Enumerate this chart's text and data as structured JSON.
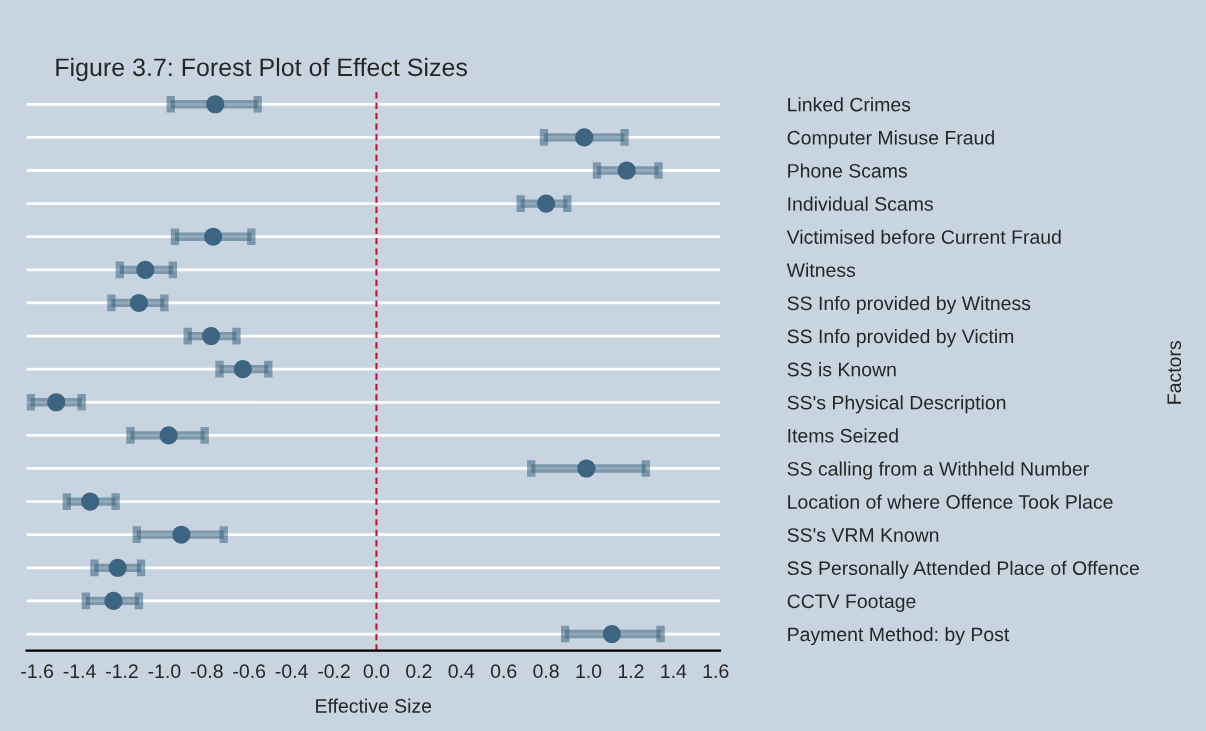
{
  "chart_data": {
    "type": "scatter",
    "orientation": "horizontal",
    "title": "Figure 3.7: Forest Plot of Effect Sizes",
    "xlabel": "Effective Size",
    "ylabel": "Factors",
    "categories": [
      "Linked Crimes",
      "Computer Misuse Fraud",
      "Phone Scams",
      "Individual Scams",
      "Victimised before Current Fraud",
      "Witness",
      "SS Info provided by Witness",
      "SS Info provided by Victim",
      "SS is Known",
      "SS's Physical Description",
      "Items Seized",
      "SS calling from a Withheld Number",
      "Location of where Offence Took Place",
      "SS's VRM Known",
      "SS Personally Attended Place of Offence",
      "CCTV Footage",
      "Payment Method: by Post"
    ],
    "series": [
      {
        "color": "#3d6480",
        "values": [
          -0.76,
          0.98,
          1.18,
          0.8,
          -0.77,
          -1.09,
          -1.12,
          -0.78,
          -0.63,
          -1.51,
          -0.98,
          0.99,
          -1.35,
          -0.92,
          -1.22,
          -1.24,
          1.11
        ],
        "errors": [
          [
            -0.97,
            -0.56
          ],
          [
            0.79,
            1.17
          ],
          [
            1.04,
            1.33
          ],
          [
            0.68,
            0.9
          ],
          [
            -0.95,
            -0.59
          ],
          [
            -1.21,
            -0.96
          ],
          [
            -1.25,
            -1.0
          ],
          [
            -0.89,
            -0.66
          ],
          [
            -0.74,
            -0.51
          ],
          [
            -1.63,
            -1.39
          ],
          [
            -1.16,
            -0.81
          ],
          [
            0.73,
            1.27
          ],
          [
            -1.46,
            -1.23
          ],
          [
            -1.13,
            -0.72
          ],
          [
            -1.33,
            -1.11
          ],
          [
            -1.37,
            -1.12
          ],
          [
            0.89,
            1.34
          ]
        ]
      }
    ],
    "xlim": [
      -1.65,
      1.62
    ],
    "xticks": [
      -1.6,
      -1.4,
      -1.2,
      {
        "value": -1,
        "label": "-1.0"
      },
      -0.8,
      -0.6,
      -0.4,
      -0.2,
      {
        "value": 0,
        "label": "0.0"
      },
      0.2,
      0.4,
      0.6,
      0.8,
      {
        "value": 1,
        "label": "1.0"
      },
      1.2,
      1.4,
      1.6
    ],
    "ref_lines": [
      {
        "axis": "x",
        "value": 0,
        "color": "#c8102e",
        "line_style": "dashed"
      }
    ],
    "grid": "y",
    "marker": "circle",
    "legend": false
  }
}
